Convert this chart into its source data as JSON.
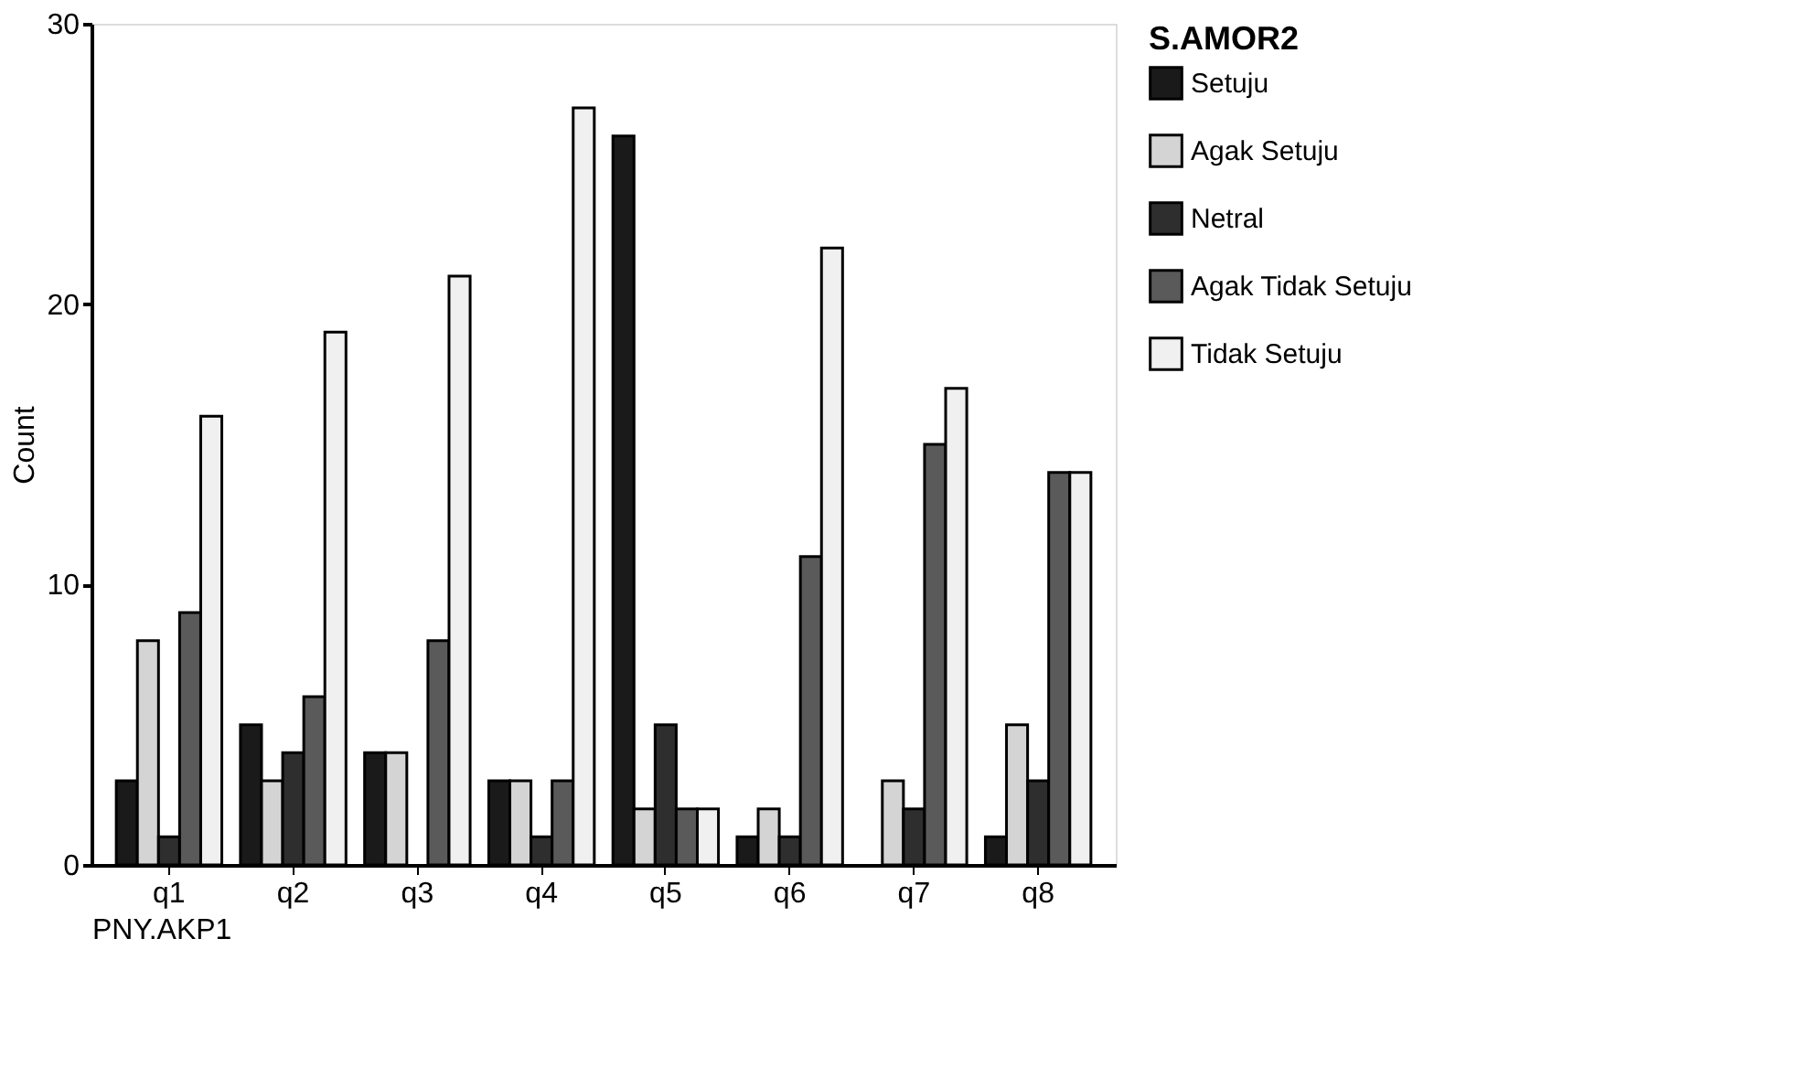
{
  "chart_data": {
    "type": "bar",
    "xlabel": "PNY.AKP1",
    "ylabel": "Count",
    "legend_title": "S.AMOR2",
    "legend": "right",
    "grid": false,
    "categories": [
      "q1",
      "q2",
      "q3",
      "q4",
      "q5",
      "q6",
      "q7",
      "q8"
    ],
    "ylim": [
      0,
      30
    ],
    "yticks": [
      0,
      10,
      20,
      30
    ],
    "series": [
      {
        "name": "Setuju",
        "color": "#1a1a1a",
        "values": [
          3,
          5,
          4,
          3,
          26,
          1,
          0,
          1
        ]
      },
      {
        "name": "Agak Setuju",
        "color": "#d4d4d4",
        "values": [
          8,
          3,
          4,
          3,
          2,
          2,
          3,
          5
        ]
      },
      {
        "name": "Netral",
        "color": "#2e2e2e",
        "values": [
          1,
          4,
          0,
          1,
          5,
          1,
          2,
          3
        ]
      },
      {
        "name": "Agak Tidak Setuju",
        "color": "#5a5a5a",
        "values": [
          9,
          6,
          8,
          3,
          2,
          11,
          15,
          14
        ]
      },
      {
        "name": "Tidak Setuju",
        "color": "#f0f0f0",
        "values": [
          16,
          19,
          21,
          27,
          2,
          22,
          17,
          14
        ]
      }
    ]
  }
}
